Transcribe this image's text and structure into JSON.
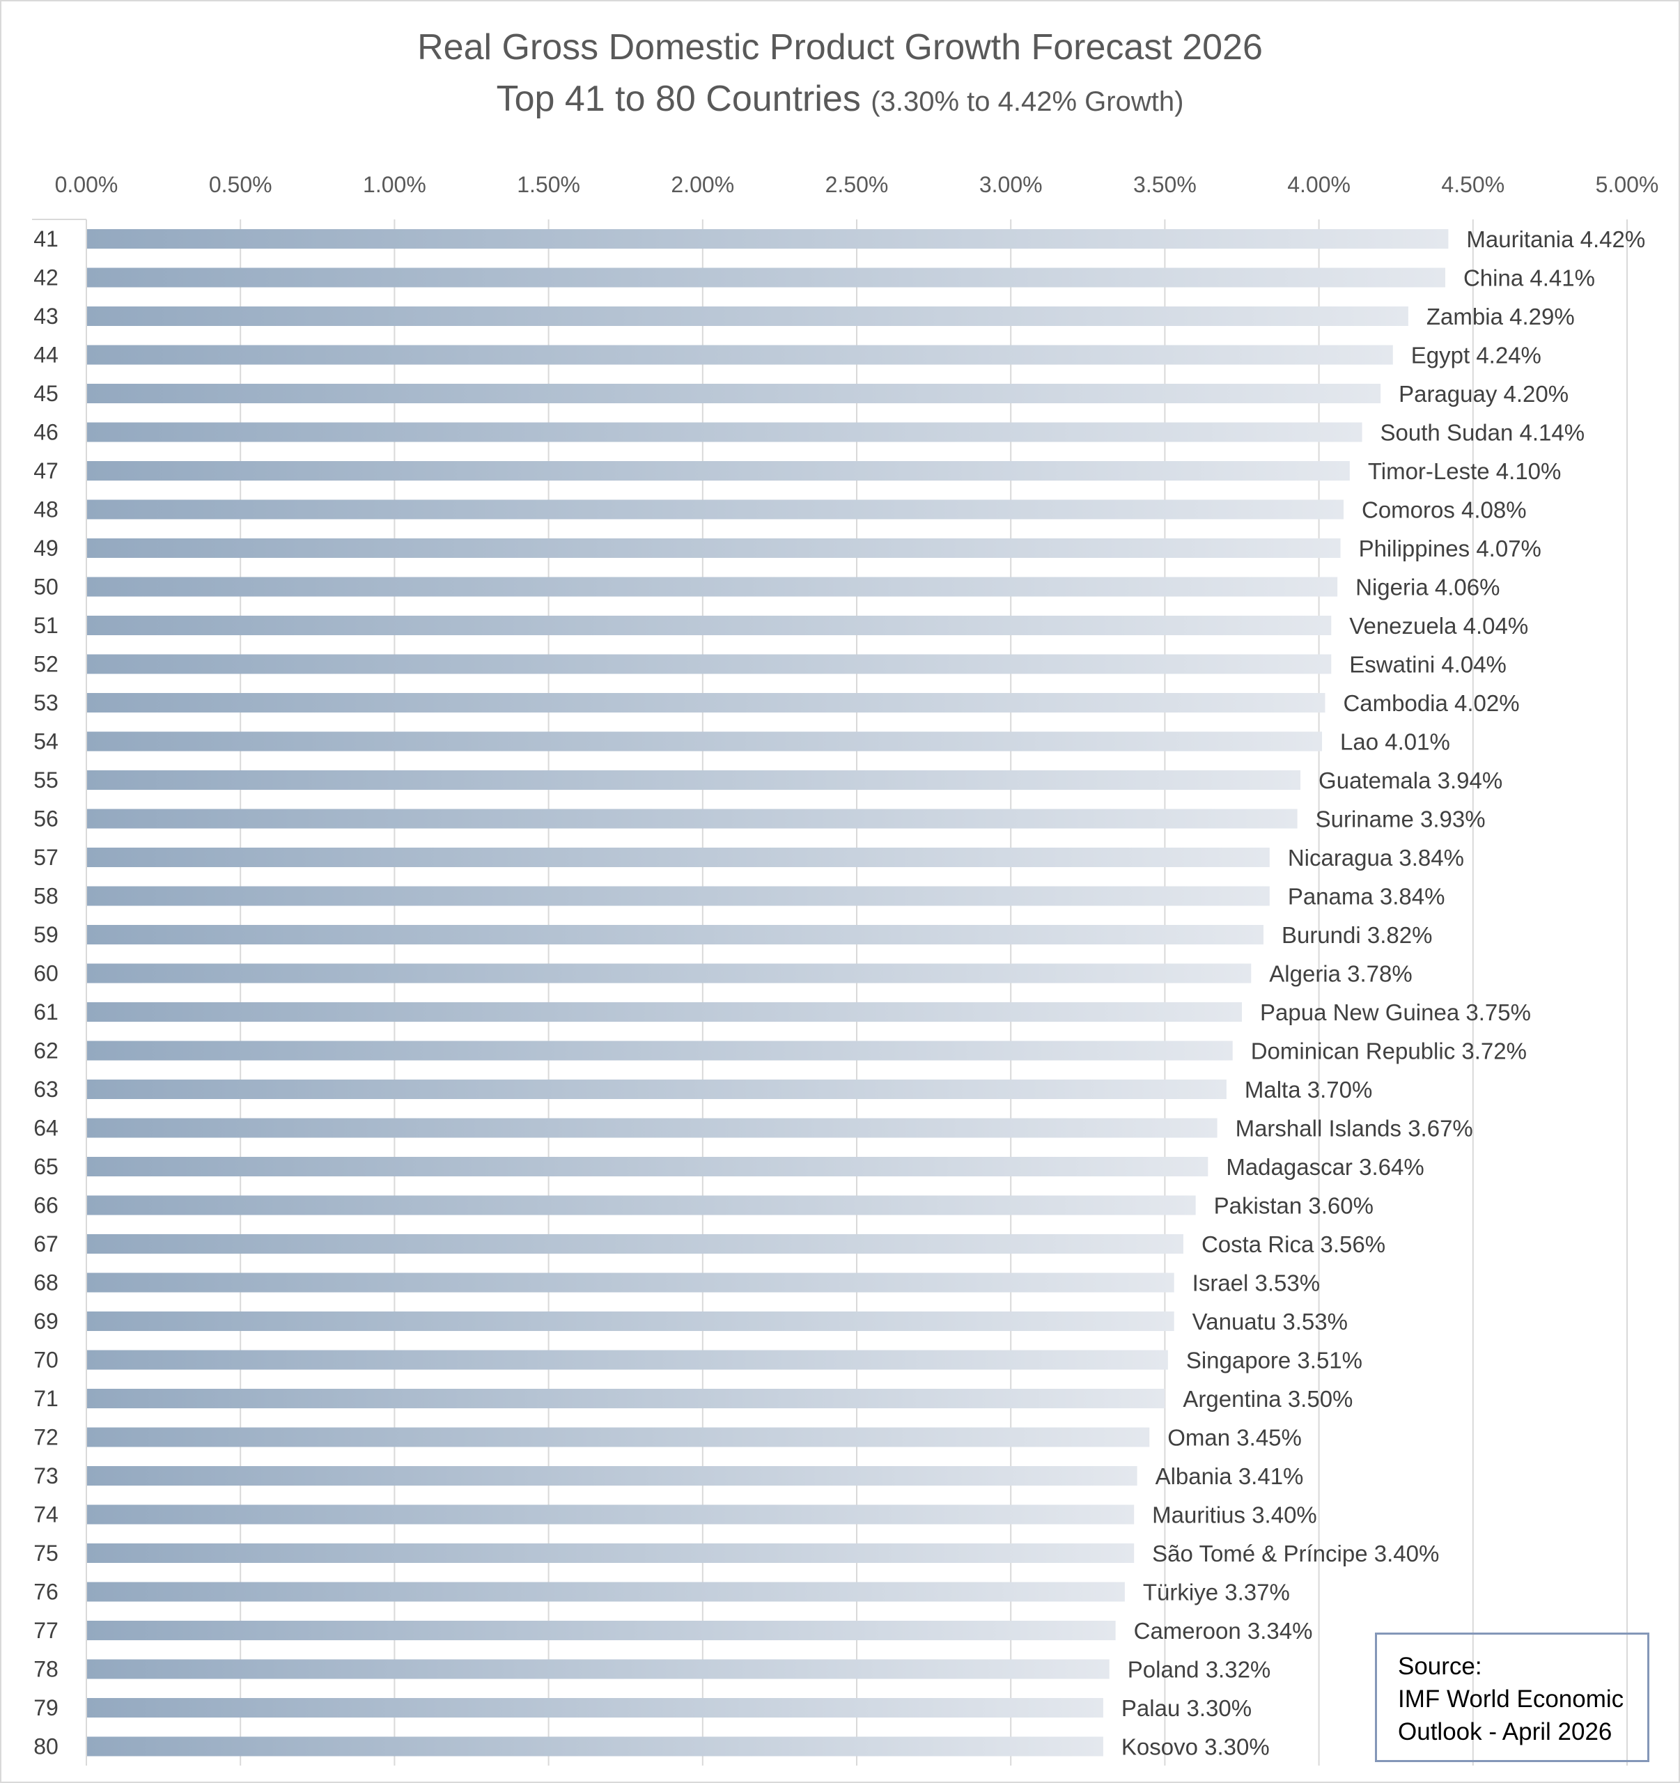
{
  "chart_data": {
    "type": "bar",
    "orientation": "horizontal",
    "title": "Real Gross Domestic Product Growth Forecast 2026",
    "subtitle_main": "Top 41 to 80 Countries",
    "subtitle_note": "(3.30% to 4.42% Growth)",
    "xlim": [
      0,
      5
    ],
    "x_ticks": [
      "0.00%",
      "0.50%",
      "1.00%",
      "1.50%",
      "2.00%",
      "2.50%",
      "3.00%",
      "3.50%",
      "4.00%",
      "4.50%",
      "5.00%"
    ],
    "grid": true,
    "bar_gradient": [
      "#94a9c0",
      "#e4e8ee"
    ],
    "categories": [
      "41",
      "42",
      "43",
      "44",
      "45",
      "46",
      "47",
      "48",
      "49",
      "50",
      "51",
      "52",
      "53",
      "54",
      "55",
      "56",
      "57",
      "58",
      "59",
      "60",
      "61",
      "62",
      "63",
      "64",
      "65",
      "66",
      "67",
      "68",
      "69",
      "70",
      "71",
      "72",
      "73",
      "74",
      "75",
      "76",
      "77",
      "78",
      "79",
      "80"
    ],
    "countries": [
      "Mauritania",
      "China",
      "Zambia",
      "Egypt",
      "Paraguay",
      "South Sudan",
      "Timor-Leste",
      "Comoros",
      "Philippines",
      "Nigeria",
      "Venezuela",
      "Eswatini",
      "Cambodia",
      "Lao",
      "Guatemala",
      "Suriname",
      "Nicaragua",
      "Panama",
      "Burundi",
      "Algeria",
      "Papua New Guinea",
      "Dominican Republic",
      "Malta",
      "Marshall Islands",
      "Madagascar",
      "Pakistan",
      "Costa Rica",
      "Israel",
      "Vanuatu",
      "Singapore",
      "Argentina",
      "Oman",
      "Albania",
      "Mauritius",
      "São Tomé & Príncipe",
      "Türkiye",
      "Cameroon",
      "Poland",
      "Palau",
      "Kosovo"
    ],
    "values": [
      4.42,
      4.41,
      4.29,
      4.24,
      4.2,
      4.14,
      4.1,
      4.08,
      4.07,
      4.06,
      4.04,
      4.04,
      4.02,
      4.01,
      3.94,
      3.93,
      3.84,
      3.84,
      3.82,
      3.78,
      3.75,
      3.72,
      3.7,
      3.67,
      3.64,
      3.6,
      3.56,
      3.53,
      3.53,
      3.51,
      3.5,
      3.45,
      3.41,
      3.4,
      3.4,
      3.37,
      3.34,
      3.32,
      3.3,
      3.3
    ]
  },
  "source": {
    "line1": "Source:",
    "line2": "IMF World Economic",
    "line3": "Outlook - April 2026"
  }
}
